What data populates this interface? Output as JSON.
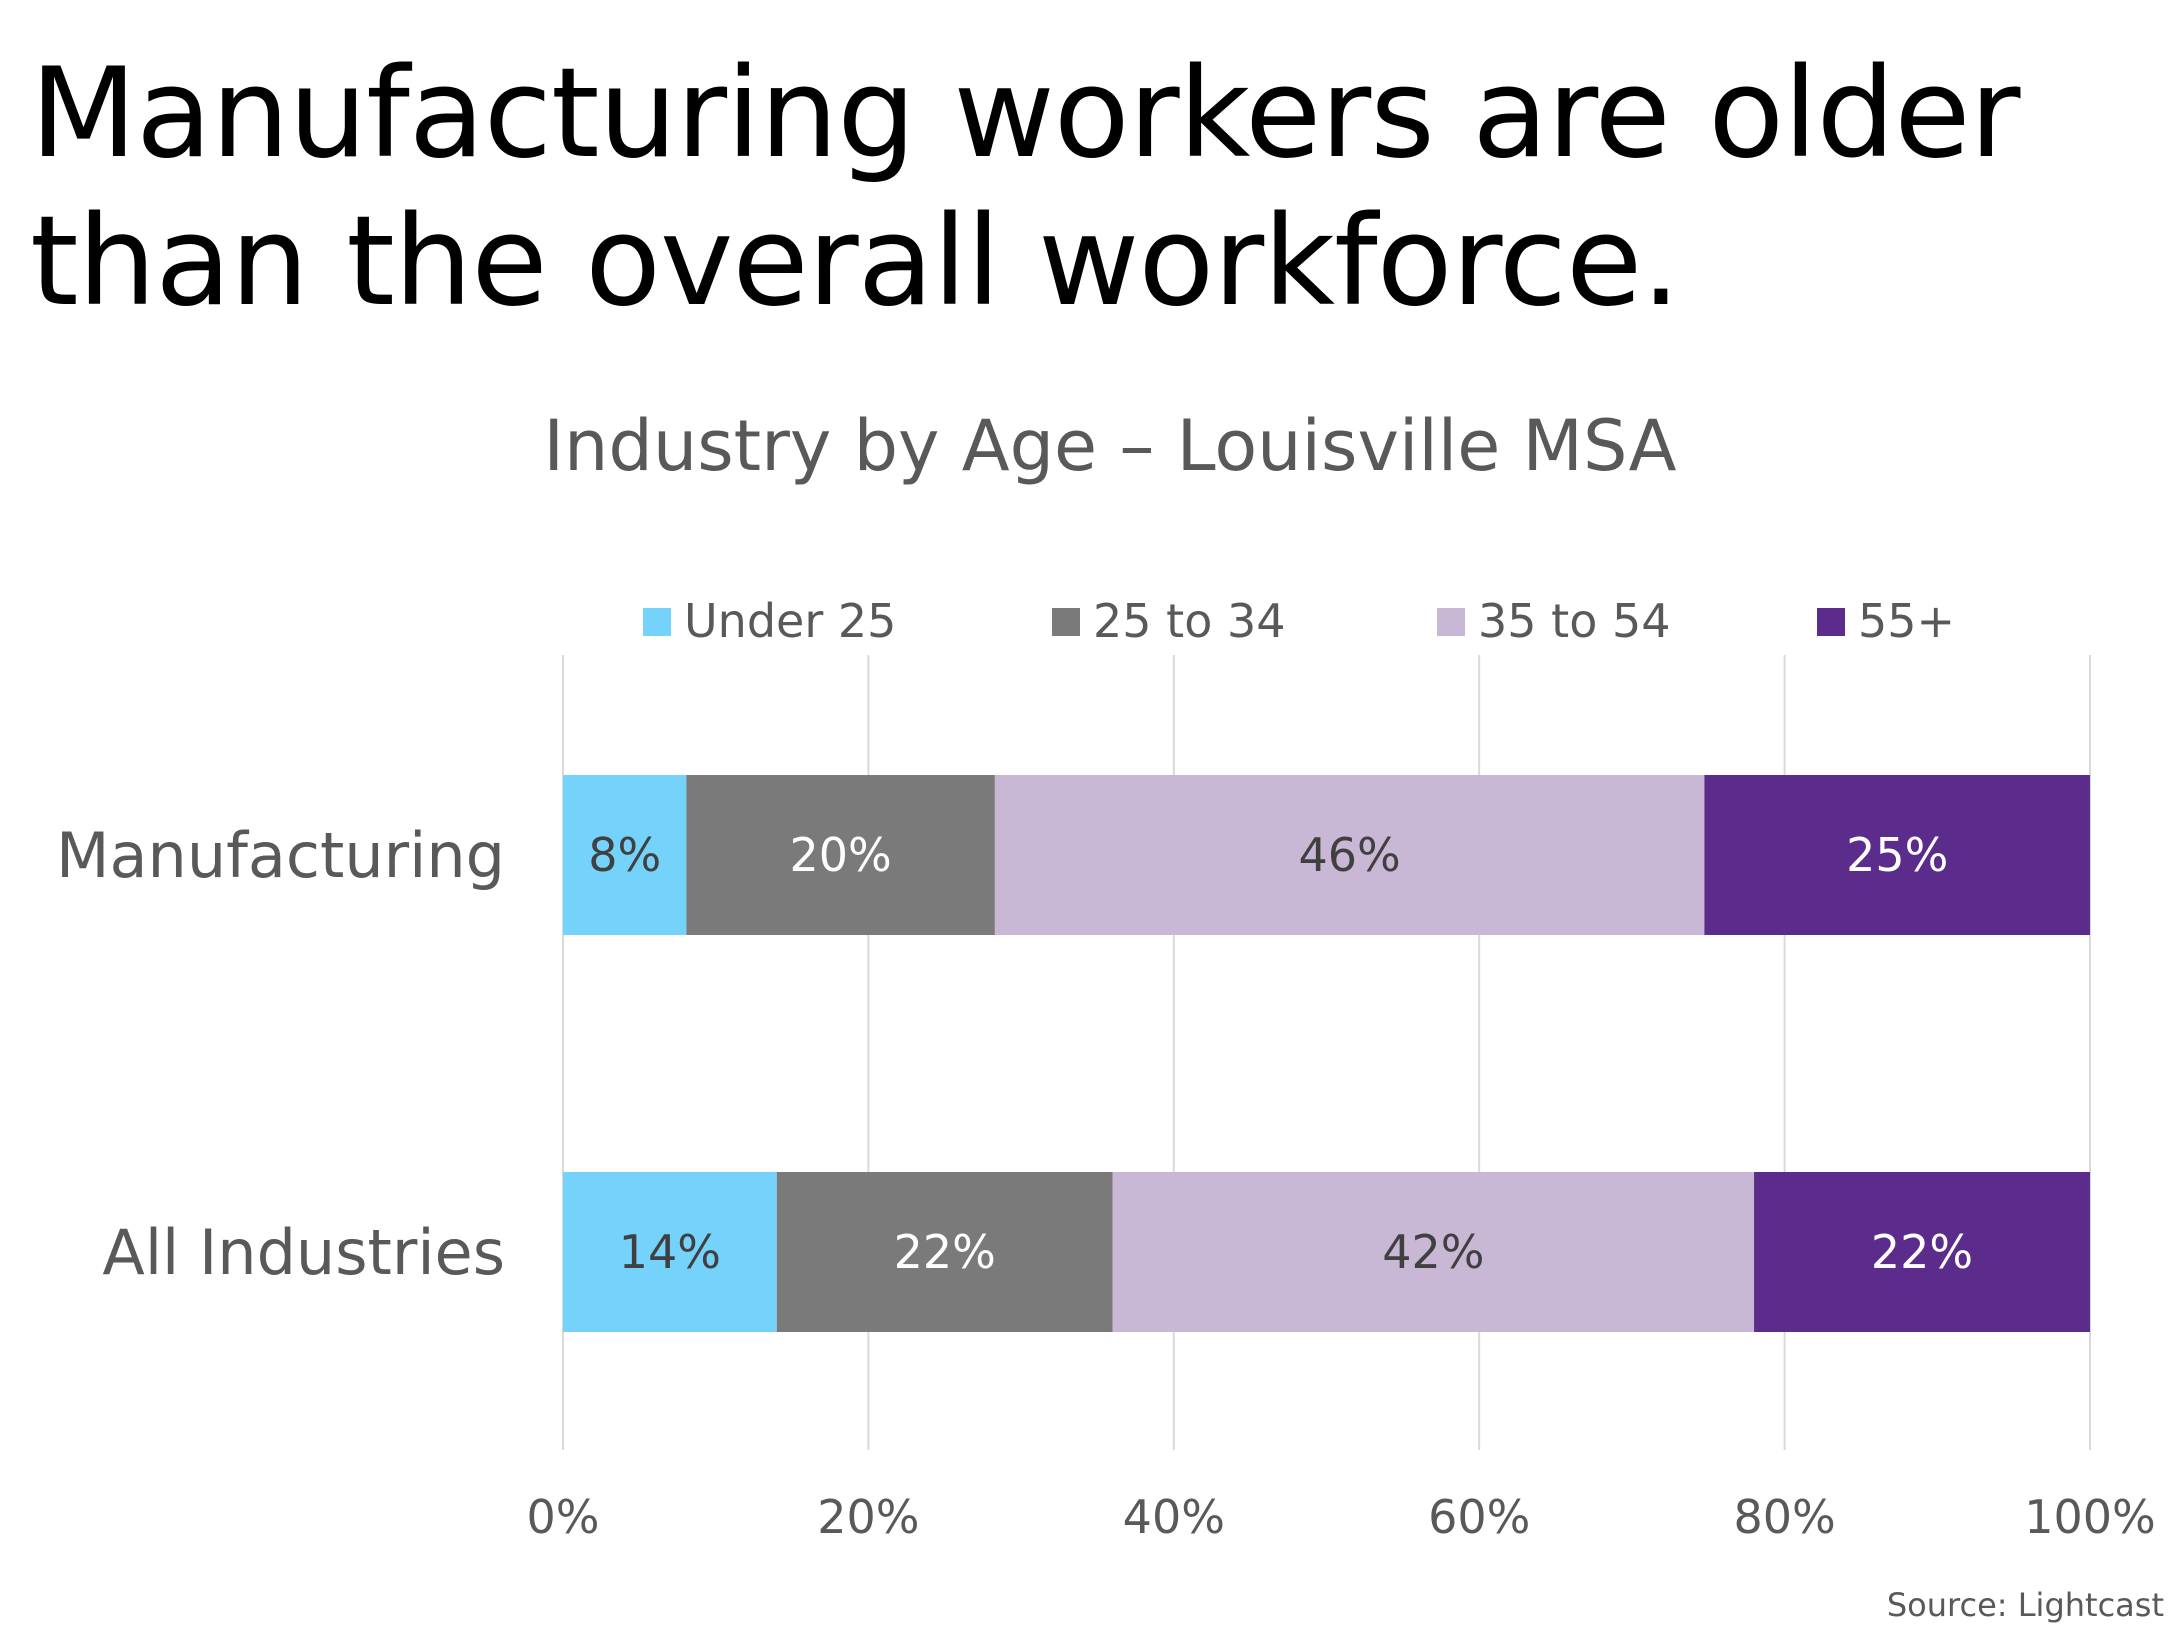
{
  "headline": {
    "line1": "Manufacturing workers are older",
    "line2": "than the overall workforce."
  },
  "source": "Source: Lightcast",
  "colors": {
    "under25": "#75d3fb",
    "25to34": "#7a7a7a",
    "35to54": "#c9b7d6",
    "55plus": "#5b2c8c",
    "text": "#595959",
    "grid": "#d9d9d9"
  },
  "chart_data": {
    "type": "bar",
    "orientation": "horizontal",
    "stacked": "percent",
    "title": "Industry by Age – Louisville MSA",
    "categories": [
      "Manufacturing",
      "All Industries"
    ],
    "series": [
      {
        "name": "Under 25",
        "values": [
          8,
          14
        ],
        "labels": [
          "8%",
          "14%"
        ],
        "color": "#75d3fb",
        "label_color": "#404040"
      },
      {
        "name": "25 to 34",
        "values": [
          20,
          22
        ],
        "labels": [
          "20%",
          "22%"
        ],
        "color": "#7a7a7a",
        "label_color": "#ffffff"
      },
      {
        "name": "35 to 54",
        "values": [
          46,
          42
        ],
        "labels": [
          "46%",
          "42%"
        ],
        "color": "#c9b7d6",
        "label_color": "#404040"
      },
      {
        "name": "55+",
        "values": [
          25,
          22
        ],
        "labels": [
          "25%",
          "22%"
        ],
        "color": "#5b2c8c",
        "label_color": "#ffffff"
      }
    ],
    "xlim": [
      0,
      100
    ],
    "x_ticks": [
      0,
      20,
      40,
      60,
      80,
      100
    ],
    "x_tick_labels": [
      "0%",
      "20%",
      "40%",
      "60%",
      "80%",
      "100%"
    ],
    "grid": true,
    "legend_position": "top"
  }
}
